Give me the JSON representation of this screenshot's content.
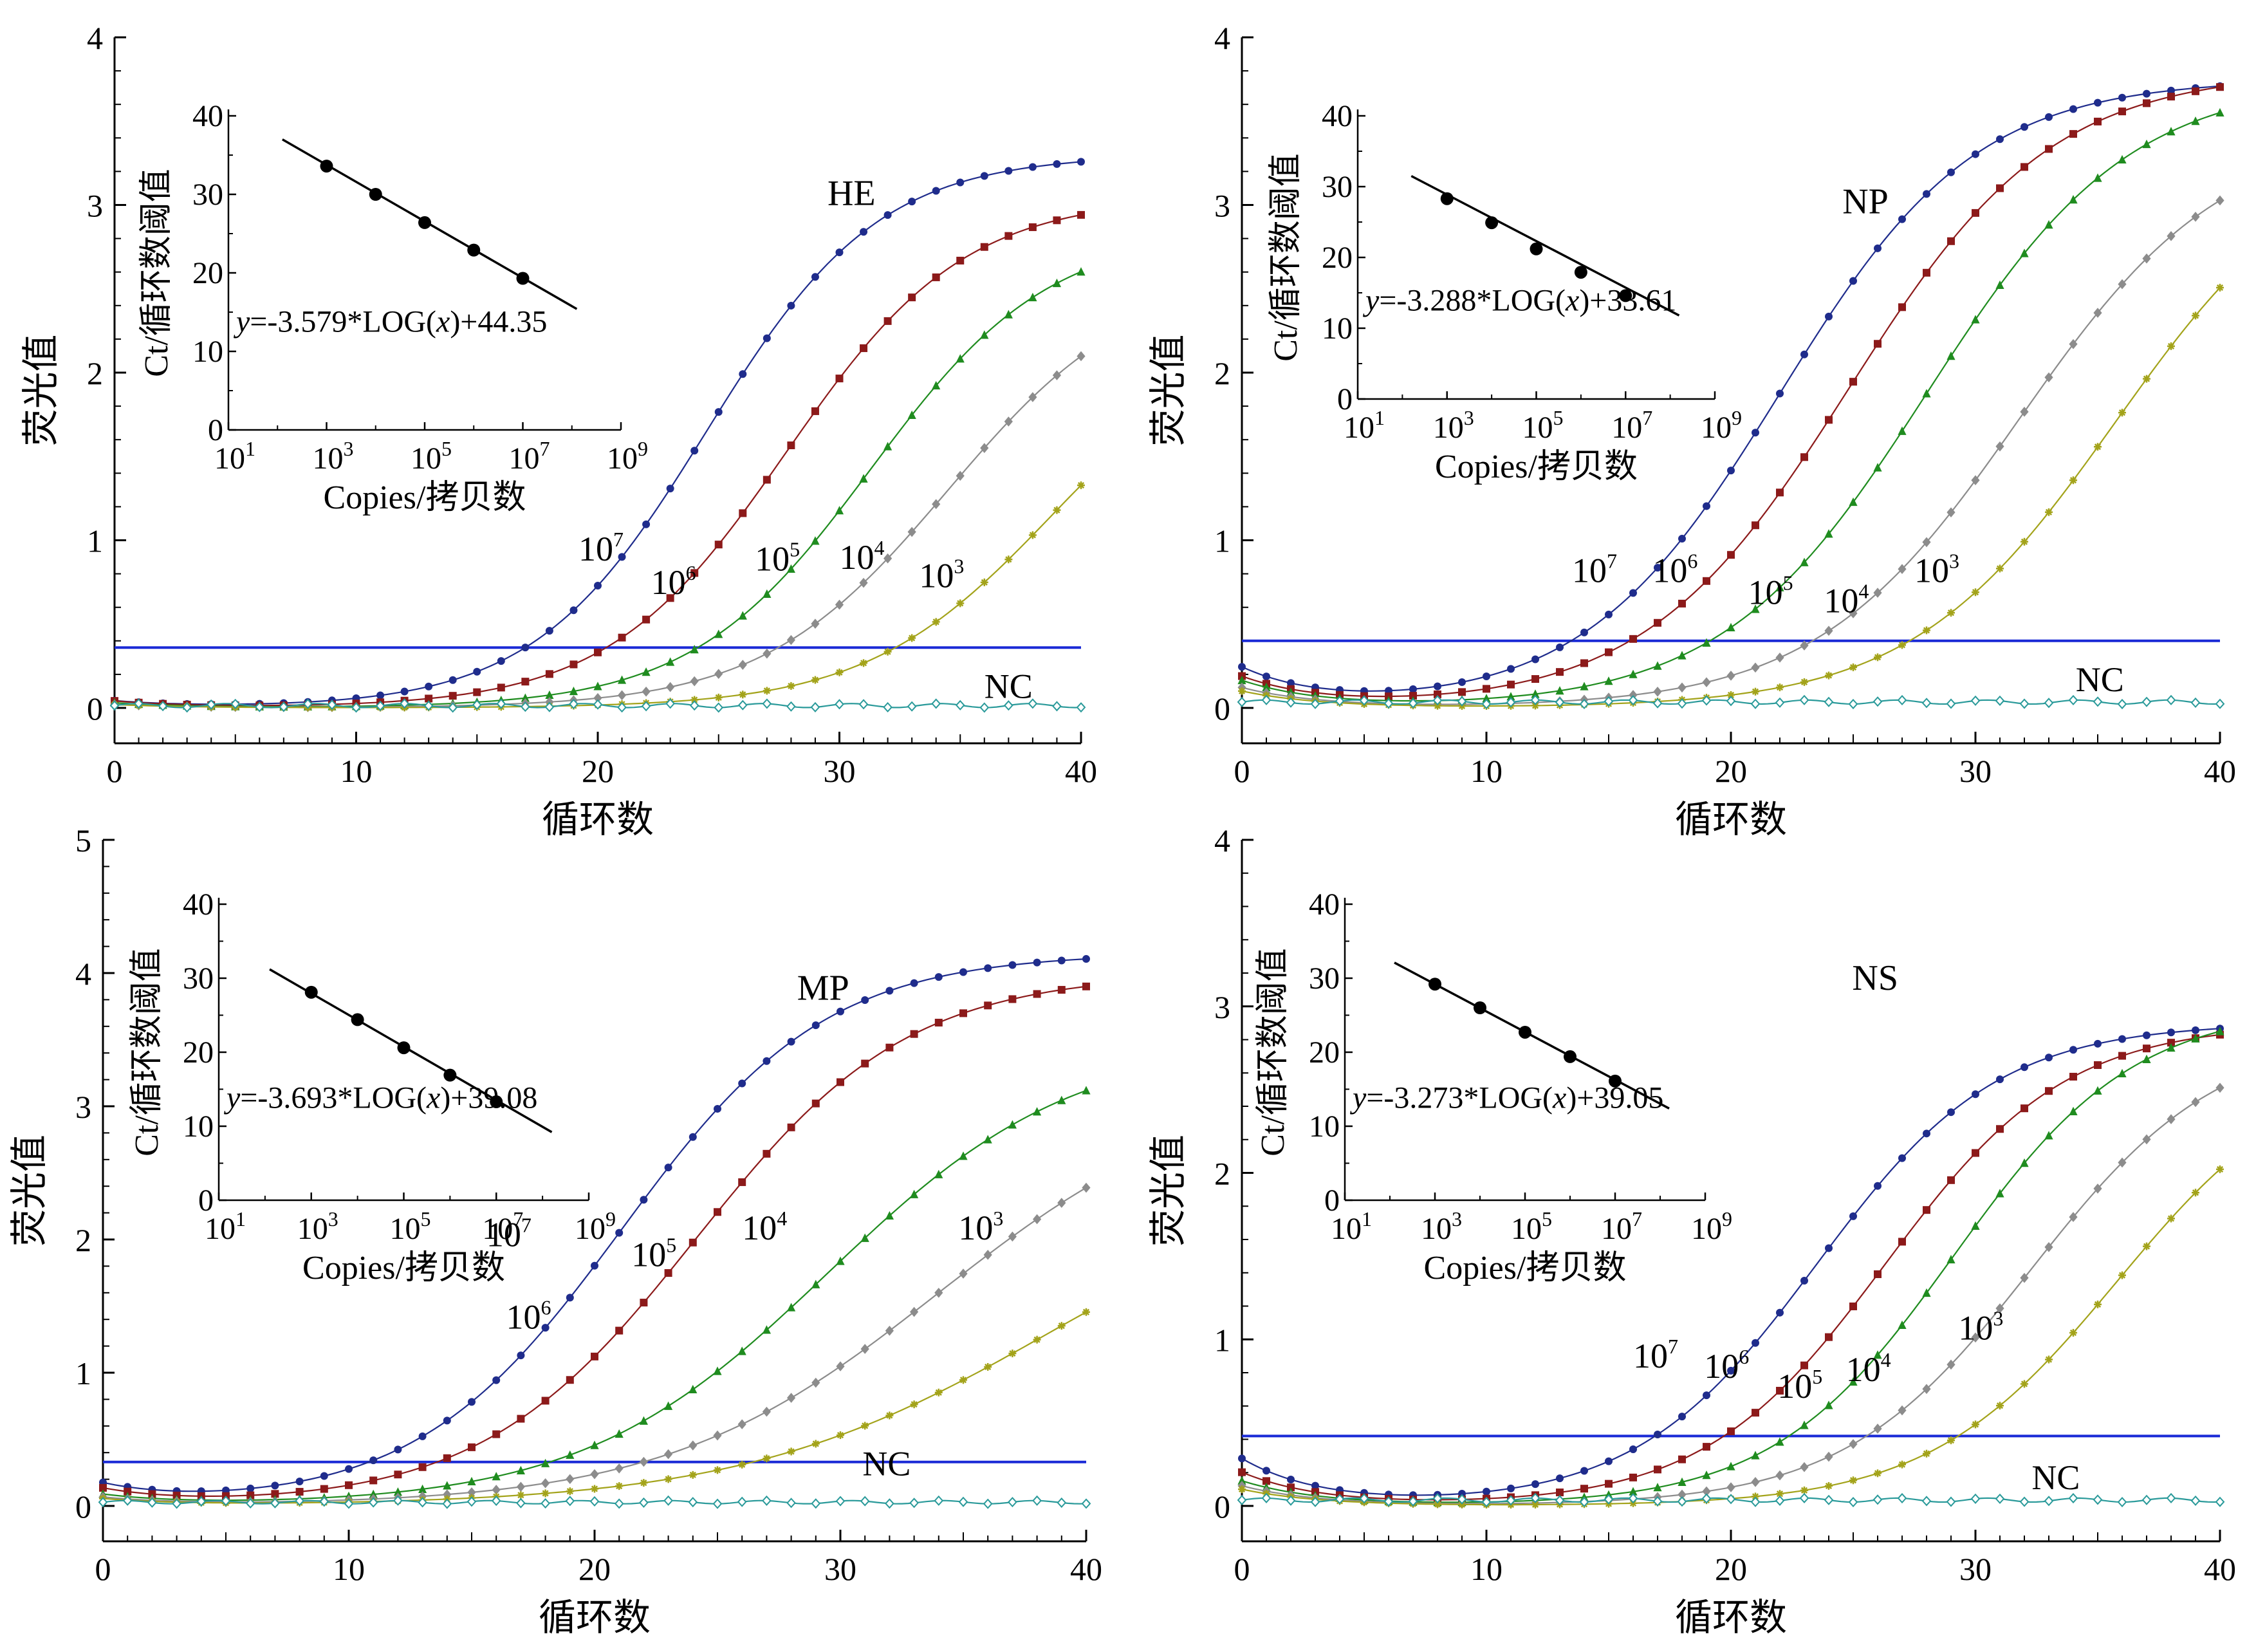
{
  "chart_data": [
    {
      "type": "line",
      "title": "HE",
      "xlabel": "循环数",
      "ylabel": "荧光值",
      "xlim": [
        0,
        40
      ],
      "ylim": [
        0,
        4
      ],
      "xticks": [
        "0",
        "10",
        "20",
        "30",
        "40"
      ],
      "yticks": [
        "0",
        "1",
        "2",
        "3",
        "4"
      ],
      "threshold": 0.36,
      "series": [
        {
          "name": "10⁷",
          "base": "10",
          "exp": "7",
          "color": "#1f2c8c",
          "marker": "circle",
          "ct": 22.0,
          "max": 3.3,
          "start": 0.04,
          "slope": 0.28
        },
        {
          "name": "10⁶",
          "base": "10",
          "exp": "6",
          "color": "#8c1a1a",
          "marker": "square",
          "ct": 25.3,
          "max": 3.05,
          "start": 0.04,
          "slope": 0.27
        },
        {
          "name": "10⁵",
          "base": "10",
          "exp": "5",
          "color": "#1f8c1f",
          "marker": "triangle",
          "ct": 28.8,
          "max": 2.85,
          "start": 0.03,
          "slope": 0.27
        },
        {
          "name": "10⁴",
          "base": "10",
          "exp": "4",
          "color": "#8c8c8c",
          "marker": "diamond",
          "ct": 32.0,
          "max": 2.6,
          "start": 0.02,
          "slope": 0.26
        },
        {
          "name": "10³",
          "base": "10",
          "exp": "3",
          "color": "#a3a31a",
          "marker": "star",
          "ct": 36.3,
          "max": 2.3,
          "start": 0.02,
          "slope": 0.26
        },
        {
          "name": "NC",
          "base": "NC",
          "exp": "",
          "color": "#2a9a9a",
          "marker": "open-diamond",
          "ct": null,
          "max": 0,
          "start": 0.02,
          "slope": 0
        }
      ],
      "curve_labels": [
        {
          "series": 0,
          "x": 19.2,
          "y": 0.88
        },
        {
          "series": 1,
          "x": 22.2,
          "y": 0.68
        },
        {
          "series": 2,
          "x": 26.5,
          "y": 0.82
        },
        {
          "series": 3,
          "x": 30.0,
          "y": 0.83
        },
        {
          "series": 4,
          "x": 33.3,
          "y": 0.72
        },
        {
          "series": 5,
          "x": 36.0,
          "y": 0.06
        }
      ],
      "gene_label_pos": {
        "x": 30.5,
        "y": 3.0
      },
      "inset": {
        "xlabel": "Copies/拷贝数",
        "ylabel": "Ct/循环数阈值",
        "xticks": [
          "1",
          "3",
          "5",
          "7",
          "9"
        ],
        "yticks": [
          "0",
          "10",
          "20",
          "30",
          "40"
        ],
        "ylim": [
          0,
          40
        ],
        "equation": {
          "pre": "y",
          "mid": "=-3.579*LOG(",
          "var": "x",
          "post": ")+44.35"
        },
        "points": [
          [
            3,
            33.6
          ],
          [
            4,
            30.0
          ],
          [
            5,
            26.4
          ],
          [
            6,
            22.9
          ],
          [
            7,
            19.3
          ]
        ],
        "line": [
          [
            2.1,
            37.0
          ],
          [
            8.1,
            15.4
          ]
        ]
      }
    },
    {
      "type": "line",
      "title": "NP",
      "xlabel": "循环数",
      "ylabel": "荧光值",
      "xlim": [
        0,
        40
      ],
      "ylim": [
        0,
        4
      ],
      "xticks": [
        "0",
        "10",
        "20",
        "30",
        "40"
      ],
      "yticks": [
        "0",
        "1",
        "2",
        "3",
        "4"
      ],
      "threshold": 0.4,
      "series": [
        {
          "name": "10⁷",
          "base": "10",
          "exp": "7",
          "color": "#1f2c8c",
          "marker": "circle",
          "ct": 19.5,
          "max": 3.75,
          "start": 0.23,
          "slope": 0.25
        },
        {
          "name": "10⁶",
          "base": "10",
          "exp": "6",
          "color": "#8c1a1a",
          "marker": "square",
          "ct": 22.3,
          "max": 3.8,
          "start": 0.18,
          "slope": 0.24
        },
        {
          "name": "10⁵",
          "base": "10",
          "exp": "5",
          "color": "#1f8c1f",
          "marker": "triangle",
          "ct": 25.5,
          "max": 3.75,
          "start": 0.16,
          "slope": 0.24
        },
        {
          "name": "10⁴",
          "base": "10",
          "exp": "4",
          "color": "#8c8c8c",
          "marker": "diamond",
          "ct": 29.3,
          "max": 3.45,
          "start": 0.12,
          "slope": 0.24
        },
        {
          "name": "10³",
          "base": "10",
          "exp": "3",
          "color": "#a3a31a",
          "marker": "star",
          "ct": 33.2,
          "max": 3.4,
          "start": 0.1,
          "slope": 0.24
        },
        {
          "name": "NC",
          "base": "NC",
          "exp": "",
          "color": "#2a9a9a",
          "marker": "open-diamond",
          "ct": null,
          "max": 0,
          "start": 0.05,
          "slope": 0
        }
      ],
      "curve_labels": [
        {
          "series": 0,
          "x": 13.5,
          "y": 0.75
        },
        {
          "series": 1,
          "x": 16.8,
          "y": 0.75
        },
        {
          "series": 2,
          "x": 20.7,
          "y": 0.62
        },
        {
          "series": 3,
          "x": 23.8,
          "y": 0.57
        },
        {
          "series": 4,
          "x": 27.5,
          "y": 0.75
        },
        {
          "series": 5,
          "x": 34.1,
          "y": 0.1
        }
      ],
      "gene_label_pos": {
        "x": 25.5,
        "y": 2.95
      },
      "inset": {
        "xlabel": "Copies/拷贝数",
        "ylabel": "Ct/循环数阈值",
        "xticks": [
          "1",
          "3",
          "5",
          "7",
          "9"
        ],
        "yticks": [
          "0",
          "10",
          "20",
          "30",
          "40"
        ],
        "ylim": [
          0,
          40
        ],
        "equation": {
          "pre": "y",
          "mid": "=-3.288*LOG(",
          "var": "x",
          "post": ")+33.61"
        },
        "points": [
          [
            3,
            28.3
          ],
          [
            4,
            24.9
          ],
          [
            5,
            21.2
          ],
          [
            6,
            17.9
          ],
          [
            7,
            14.6
          ]
        ],
        "line": [
          [
            2.2,
            31.5
          ],
          [
            8.2,
            11.8
          ]
        ]
      }
    },
    {
      "type": "line",
      "title": "MP",
      "xlabel": "循环数",
      "ylabel": "荧光值",
      "xlim": [
        0,
        40
      ],
      "ylim": [
        0,
        5
      ],
      "xticks": [
        "0",
        "10",
        "20",
        "30",
        "40"
      ],
      "yticks": [
        "0",
        "1",
        "2",
        "3",
        "4",
        "5"
      ],
      "threshold": 0.33,
      "series": [
        {
          "name": "10⁷",
          "base": "10",
          "exp": "7",
          "color": "#1f2c8c",
          "marker": "circle",
          "ct": 18.6,
          "max": 4.15,
          "start": 0.15,
          "slope": 0.24
        },
        {
          "name": "10⁶",
          "base": "10",
          "exp": "6",
          "color": "#8c1a1a",
          "marker": "square",
          "ct": 21.6,
          "max": 4.0,
          "start": 0.12,
          "slope": 0.23
        },
        {
          "name": "10⁵",
          "base": "10",
          "exp": "5",
          "color": "#1f8c1f",
          "marker": "triangle",
          "ct": 27.0,
          "max": 3.5,
          "start": 0.08,
          "slope": 0.2
        },
        {
          "name": "10⁴",
          "base": "10",
          "exp": "4",
          "color": "#8c8c8c",
          "marker": "diamond",
          "ct": 31.5,
          "max": 3.2,
          "start": 0.06,
          "slope": 0.18
        },
        {
          "name": "10³",
          "base": "10",
          "exp": "3",
          "color": "#a3a31a",
          "marker": "star",
          "ct": 36.0,
          "max": 2.6,
          "start": 0.05,
          "slope": 0.16
        },
        {
          "name": "NC",
          "base": "NC",
          "exp": "",
          "color": "#2a9a9a",
          "marker": "open-diamond",
          "ct": null,
          "max": 0,
          "start": 0.04,
          "slope": 0
        }
      ],
      "curve_labels": [
        {
          "series": 0,
          "x": 15.6,
          "y": 1.95
        },
        {
          "series": 1,
          "x": 16.4,
          "y": 1.33
        },
        {
          "series": 2,
          "x": 21.5,
          "y": 1.8
        },
        {
          "series": 3,
          "x": 26.0,
          "y": 2.0
        },
        {
          "series": 4,
          "x": 34.8,
          "y": 2.0
        },
        {
          "series": 5,
          "x": 30.9,
          "y": 0.23
        }
      ],
      "gene_label_pos": {
        "x": 29.3,
        "y": 3.8
      },
      "inset": {
        "xlabel": "Copies/拷贝数",
        "ylabel": "Ct/循环数阈值",
        "xticks": [
          "1",
          "3",
          "5",
          "7",
          "9"
        ],
        "yticks": [
          "0",
          "10",
          "20",
          "30",
          "40"
        ],
        "ylim": [
          0,
          40
        ],
        "equation": {
          "pre": "y",
          "mid": "=-3.693*LOG(",
          "var": "x",
          "post": ")+39.08"
        },
        "points": [
          [
            3,
            28.1
          ],
          [
            4,
            24.4
          ],
          [
            5,
            20.6
          ],
          [
            6,
            16.9
          ],
          [
            7,
            13.3
          ]
        ],
        "line": [
          [
            2.1,
            31.2
          ],
          [
            8.2,
            9.2
          ]
        ]
      }
    },
    {
      "type": "line",
      "title": "NS",
      "xlabel": "循环数",
      "ylabel": "荧光值",
      "xlim": [
        0,
        40
      ],
      "ylim": [
        0,
        4
      ],
      "xticks": [
        "0",
        "10",
        "20",
        "30",
        "40"
      ],
      "yticks": [
        "0",
        "1",
        "2",
        "3",
        "4"
      ],
      "threshold": 0.42,
      "series": [
        {
          "name": "10⁷",
          "base": "10",
          "exp": "7",
          "color": "#1f2c8c",
          "marker": "circle",
          "ct": 21.0,
          "max": 2.9,
          "start": 0.28,
          "slope": 0.27
        },
        {
          "name": "10⁶",
          "base": "10",
          "exp": "6",
          "color": "#8c1a1a",
          "marker": "square",
          "ct": 23.8,
          "max": 2.9,
          "start": 0.2,
          "slope": 0.27
        },
        {
          "name": "10⁵",
          "base": "10",
          "exp": "5",
          "color": "#1f8c1f",
          "marker": "triangle",
          "ct": 26.6,
          "max": 3.0,
          "start": 0.15,
          "slope": 0.27
        },
        {
          "name": "10⁴",
          "base": "10",
          "exp": "4",
          "color": "#8c8c8c",
          "marker": "diamond",
          "ct": 29.8,
          "max": 2.85,
          "start": 0.12,
          "slope": 0.26
        },
        {
          "name": "10³",
          "base": "10",
          "exp": "3",
          "color": "#a3a31a",
          "marker": "star",
          "ct": 33.3,
          "max": 2.7,
          "start": 0.1,
          "slope": 0.26
        },
        {
          "name": "NC",
          "base": "NC",
          "exp": "",
          "color": "#2a9a9a",
          "marker": "open-diamond",
          "ct": null,
          "max": 0,
          "start": 0.05,
          "slope": 0
        }
      ],
      "curve_labels": [
        {
          "series": 0,
          "x": 16.0,
          "y": 0.83
        },
        {
          "series": 1,
          "x": 18.9,
          "y": 0.77
        },
        {
          "series": 2,
          "x": 21.9,
          "y": 0.65
        },
        {
          "series": 3,
          "x": 24.7,
          "y": 0.75
        },
        {
          "series": 4,
          "x": 29.3,
          "y": 1.0
        },
        {
          "series": 5,
          "x": 32.3,
          "y": 0.1
        }
      ],
      "gene_label_pos": {
        "x": 25.9,
        "y": 3.1
      },
      "inset": {
        "xlabel": "Copies/拷贝数",
        "ylabel": "Ct/循环数阈值",
        "xticks": [
          "1",
          "3",
          "5",
          "7",
          "9"
        ],
        "yticks": [
          "0",
          "10",
          "20",
          "30",
          "40"
        ],
        "ylim": [
          0,
          40
        ],
        "equation": {
          "pre": "y",
          "mid": "=-3.273*LOG(",
          "var": "x",
          "post": ")+39.05"
        },
        "points": [
          [
            3,
            29.2
          ],
          [
            4,
            26.0
          ],
          [
            5,
            22.7
          ],
          [
            6,
            19.4
          ],
          [
            7,
            16.1
          ]
        ],
        "line": [
          [
            2.1,
            32.1
          ],
          [
            8.2,
            12.4
          ]
        ]
      }
    }
  ]
}
